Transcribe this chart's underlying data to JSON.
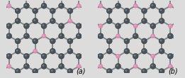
{
  "bg_color": "#dcdcdc",
  "carbon_color": "#4a5258",
  "boron_color": "#e090b0",
  "bond_color": "#808888",
  "bond_lw": 1.4,
  "carbon_r": 0.28,
  "boron_r": 0.21,
  "label_a": "(a)",
  "label_b": "(b)",
  "label_fs": 7,
  "panel_bg": "#dcdcdc"
}
